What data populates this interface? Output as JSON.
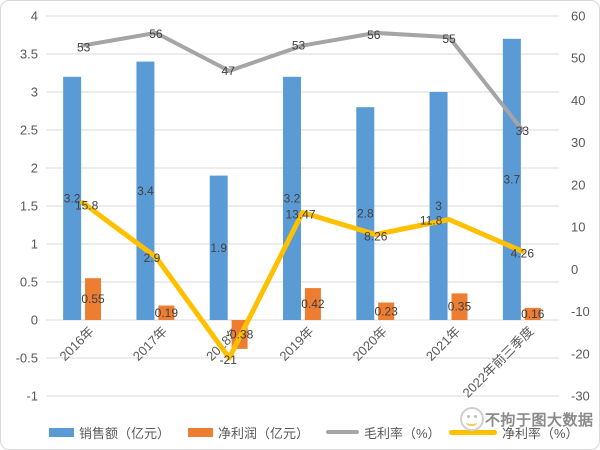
{
  "chart_data": {
    "type": "combo",
    "categories": [
      "2016年",
      "2017年",
      "2018年",
      "2019年",
      "2020年",
      "2021年",
      "2022年前三季度"
    ],
    "series": [
      {
        "name": "销售额（亿元）",
        "type": "bar",
        "axis": "left",
        "color": "#5B9BD5",
        "values": [
          3.2,
          3.4,
          1.9,
          3.2,
          2.8,
          3,
          3.7
        ],
        "labels": [
          "3.2",
          "3.4",
          "1.9",
          "3.2",
          "2.8",
          "3",
          "3.7"
        ]
      },
      {
        "name": "净利润（亿元）",
        "type": "bar",
        "axis": "left",
        "color": "#ED7D31",
        "values": [
          0.55,
          0.19,
          -0.38,
          0.42,
          0.23,
          0.35,
          0.16
        ],
        "labels": [
          "0.55",
          "0.19",
          "-0.38",
          "0.42",
          "0.23",
          "0.35",
          "0.16"
        ]
      },
      {
        "name": "毛利率（%）",
        "type": "line",
        "axis": "right",
        "color": "#A5A5A5",
        "values": [
          53,
          56,
          47,
          53,
          56,
          55,
          33
        ],
        "labels": [
          "53",
          "56",
          "47",
          "53",
          "56",
          "55",
          "33"
        ]
      },
      {
        "name": "净利率（%）",
        "type": "line",
        "axis": "right",
        "color": "#FFC000",
        "values": [
          15.8,
          2.9,
          -21,
          13.47,
          8.26,
          11.8,
          4.26
        ],
        "labels": [
          "15.8",
          "2.9",
          "-21",
          "13.47",
          "8.26",
          "11.8",
          "4.26"
        ]
      }
    ],
    "left_axis": {
      "min": -1,
      "max": 4,
      "step": 0.5,
      "ticks": [
        "4",
        "3.5",
        "3",
        "2.5",
        "2",
        "1.5",
        "1",
        "0.5",
        "0",
        "-0.5",
        "-1"
      ]
    },
    "right_axis": {
      "min": -30,
      "max": 60,
      "step": 10,
      "ticks": [
        "60",
        "50",
        "40",
        "30",
        "20",
        "10",
        "0",
        "-10",
        "-20",
        "-30"
      ]
    },
    "title": "",
    "xlabel": "",
    "ylabel": "",
    "grid": true,
    "legend_position": "bottom"
  },
  "watermark": {
    "text": "不拘于图大数据"
  },
  "colors": {
    "grid": "#D9D9D9",
    "axis_text": "#595959",
    "data_label_text": "#404040",
    "frame_border": "#D9D9D9",
    "bar_sales": "#5B9BD5",
    "bar_profit": "#ED7D31",
    "line_gross_margin": "#A5A5A5",
    "line_net_margin": "#FFC000"
  }
}
